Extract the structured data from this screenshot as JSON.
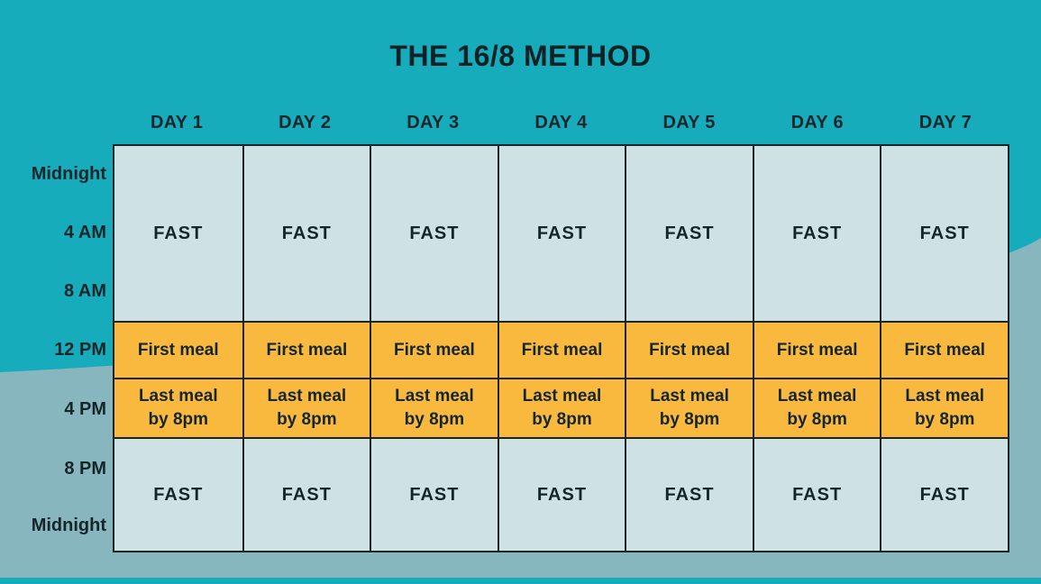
{
  "title": "THE 16/8 METHOD",
  "colors": {
    "background_teal": "#16acbc",
    "background_steel": "#88b6be",
    "fast_cell_bg": "#cfe2e3",
    "meal_cell_bg": "#f9b83e",
    "border": "#1d2426",
    "text": "#15262a"
  },
  "table": {
    "days": [
      "DAY 1",
      "DAY 2",
      "DAY 3",
      "DAY 4",
      "DAY 5",
      "DAY 6",
      "DAY 7"
    ],
    "time_labels": [
      "Midnight",
      "4 AM",
      "8 AM",
      "12 PM",
      "4 PM",
      "8 PM",
      "Midnight"
    ],
    "rows": [
      {
        "text": "FAST",
        "kind": "fast",
        "slots": 3
      },
      {
        "text": "First meal",
        "kind": "meal",
        "slots": 1
      },
      {
        "text": "Last meal\nby 8pm",
        "kind": "meal",
        "slots": 1
      },
      {
        "text": "FAST",
        "kind": "fast",
        "slots": 2
      }
    ]
  }
}
